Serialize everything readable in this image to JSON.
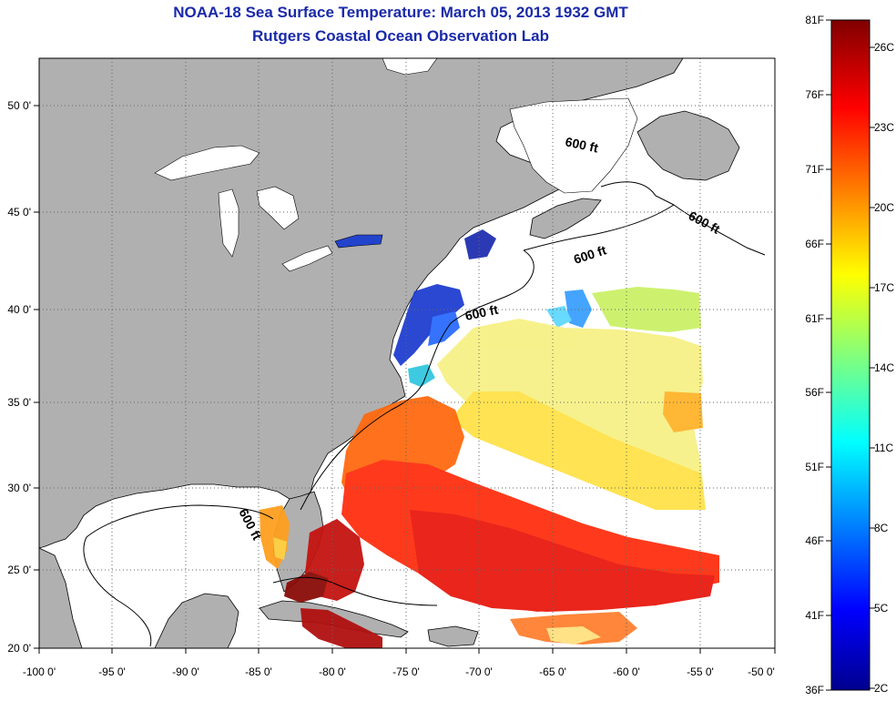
{
  "title": {
    "line1": "NOAA-18 Sea Surface Temperature:  March 05, 2013 1932 GMT",
    "line2": "Rutgers Coastal Ocean Observation Lab"
  },
  "map": {
    "lon_ticks": [
      "-100 0'",
      "-95 0'",
      "-90 0'",
      "-85 0'",
      "-80 0'",
      "-75 0'",
      "-70 0'",
      "-65 0'",
      "-60 0'",
      "-55 0'",
      "-50 0'"
    ],
    "lat_ticks": [
      "50 0'",
      "45 0'",
      "40 0'",
      "35 0'",
      "30 0'",
      "25 0'",
      "20 0'"
    ],
    "depth_labels": [
      "600 ft",
      "600 ft",
      "600 ft",
      "600 ft",
      "600 ft"
    ],
    "colors": {
      "land": "#b0b0b0",
      "ocean": "#ffffff",
      "frame": "#000000"
    }
  },
  "colorbar": {
    "fahrenheit_labels": [
      "81F",
      "76F",
      "71F",
      "66F",
      "61F",
      "56F",
      "51F",
      "46F",
      "41F",
      "36F"
    ],
    "celsius_labels": [
      "26C",
      "23C",
      "20C",
      "17C",
      "14C",
      "11C",
      "8C",
      "5C",
      "2C"
    ],
    "colormap": "jet"
  }
}
